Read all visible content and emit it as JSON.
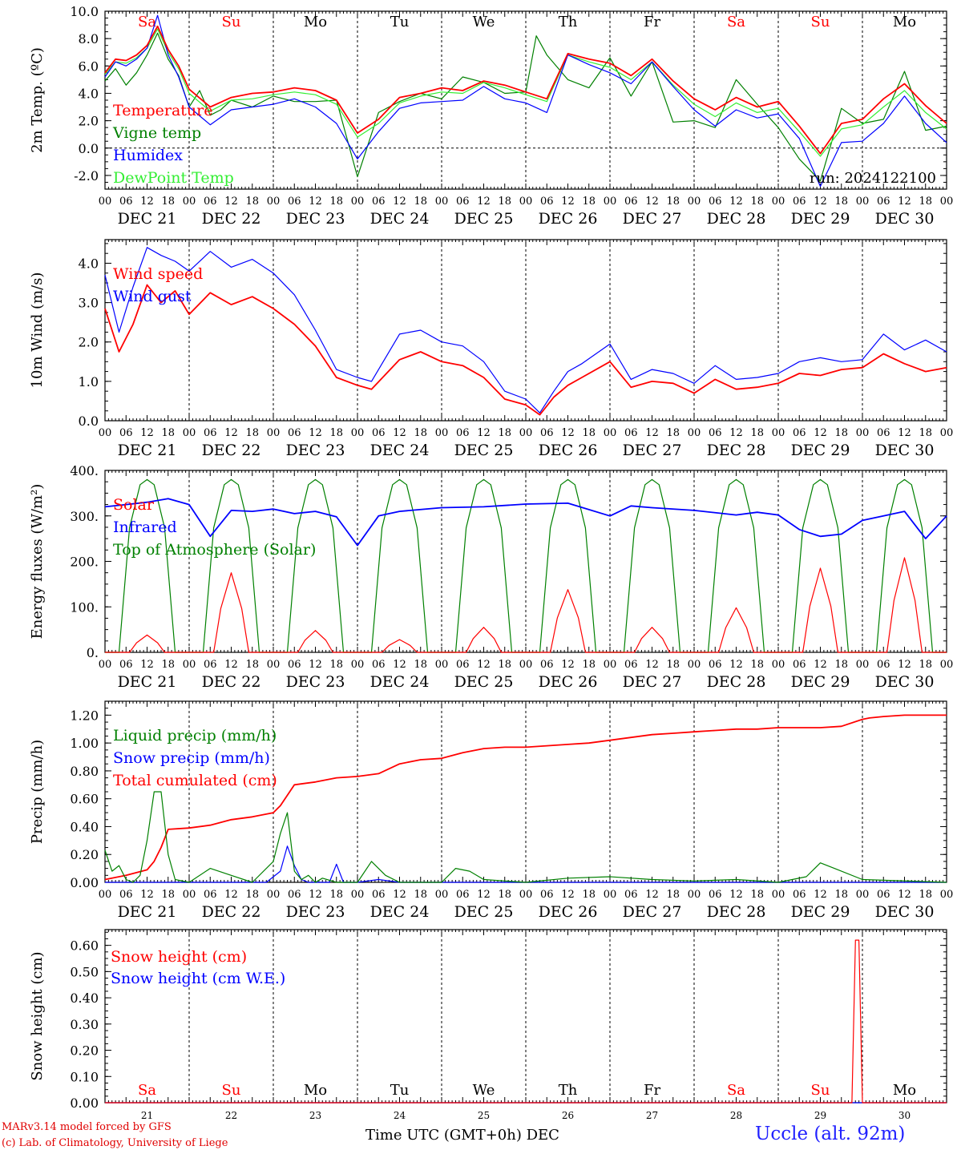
{
  "chart_data": [
    {
      "type": "line",
      "ylabel": "2m Temp. (ºC)",
      "ylim": [
        -3,
        10
      ],
      "yticks": [
        "10.0",
        "8.0",
        "6.0",
        "4.0",
        "2.0",
        "0.0",
        "-2.0"
      ],
      "annotation": "run: 2024122100",
      "series": [
        {
          "name": "Temperature",
          "color": "#ff0000",
          "x": [
            0,
            3,
            6,
            9,
            12,
            15,
            18,
            21,
            24,
            30,
            36,
            42,
            48,
            54,
            60,
            66,
            72,
            78,
            84,
            90,
            96,
            102,
            108,
            114,
            120,
            126,
            132,
            138,
            144,
            150,
            156,
            162,
            168,
            174,
            180,
            186,
            192,
            198,
            204,
            210,
            216,
            222,
            228,
            234,
            240
          ],
          "y": [
            5.5,
            6.5,
            6.4,
            6.8,
            7.5,
            8.9,
            7.2,
            6.0,
            4.3,
            3.0,
            3.7,
            4.0,
            4.1,
            4.4,
            4.2,
            3.5,
            1.1,
            2.1,
            3.7,
            4.0,
            4.4,
            4.2,
            4.9,
            4.6,
            4.1,
            3.6,
            6.9,
            6.5,
            6.2,
            5.3,
            6.5,
            4.9,
            3.6,
            2.8,
            3.7,
            3.0,
            3.4,
            1.6,
            -0.4,
            1.8,
            2.1,
            3.6,
            4.7,
            3.1,
            1.8
          ]
        },
        {
          "name": "Vigne temp",
          "color": "#008000",
          "x": [
            0,
            3,
            6,
            9,
            12,
            15,
            18,
            21,
            24,
            27,
            30,
            33,
            36,
            42,
            48,
            54,
            60,
            66,
            72,
            78,
            84,
            90,
            96,
            102,
            108,
            114,
            120,
            123,
            126,
            132,
            138,
            144,
            150,
            156,
            162,
            168,
            174,
            180,
            186,
            192,
            198,
            204,
            210,
            216,
            222,
            228,
            234,
            240
          ],
          "y": [
            4.9,
            5.8,
            4.6,
            5.5,
            6.8,
            8.4,
            6.5,
            5.3,
            3.0,
            4.2,
            2.4,
            2.8,
            3.5,
            3.0,
            3.8,
            3.4,
            3.4,
            3.5,
            -2.1,
            2.6,
            3.4,
            4.0,
            3.6,
            5.2,
            4.8,
            4.0,
            4.1,
            8.2,
            6.8,
            5.0,
            4.4,
            6.6,
            3.8,
            6.3,
            1.9,
            2.0,
            1.5,
            5.0,
            3.2,
            1.5,
            -0.8,
            -2.4,
            2.9,
            1.8,
            2.1,
            5.6,
            1.3,
            1.6
          ]
        },
        {
          "name": "Humidex",
          "color": "#0000ff",
          "x": [
            0,
            3,
            6,
            9,
            12,
            15,
            18,
            21,
            24,
            30,
            36,
            42,
            48,
            54,
            60,
            66,
            72,
            78,
            84,
            90,
            96,
            102,
            108,
            114,
            120,
            126,
            132,
            138,
            144,
            150,
            156,
            162,
            168,
            174,
            180,
            186,
            192,
            198,
            204,
            210,
            216,
            222,
            228,
            234,
            240
          ],
          "y": [
            5.2,
            6.3,
            6.0,
            6.5,
            7.3,
            9.7,
            6.8,
            5.2,
            3.0,
            1.7,
            2.8,
            3.0,
            3.2,
            3.6,
            3.0,
            1.8,
            -0.8,
            1.2,
            2.9,
            3.3,
            3.4,
            3.5,
            4.5,
            3.6,
            3.3,
            2.6,
            6.8,
            6.1,
            5.5,
            4.7,
            6.3,
            4.5,
            2.8,
            1.6,
            2.8,
            2.2,
            2.5,
            0.7,
            -2.8,
            0.4,
            0.5,
            1.8,
            3.8,
            1.8,
            0.4
          ]
        },
        {
          "name": "DewPoint Temp",
          "color": "#33ee33",
          "x": [
            0,
            3,
            6,
            9,
            12,
            15,
            18,
            21,
            24,
            30,
            36,
            42,
            48,
            54,
            60,
            66,
            72,
            78,
            84,
            90,
            96,
            102,
            108,
            114,
            120,
            126,
            132,
            138,
            144,
            150,
            156,
            162,
            168,
            174,
            180,
            186,
            192,
            198,
            204,
            210,
            216,
            222,
            228,
            234,
            240
          ],
          "y": [
            5.4,
            6.3,
            6.2,
            6.6,
            7.3,
            8.7,
            7.0,
            5.8,
            4.0,
            2.7,
            3.5,
            3.6,
            3.9,
            4.1,
            3.9,
            3.2,
            0.8,
            1.8,
            3.3,
            3.8,
            4.1,
            4.0,
            4.8,
            4.4,
            3.9,
            3.4,
            6.8,
            6.3,
            5.9,
            5.0,
            6.3,
            4.6,
            3.2,
            2.3,
            3.3,
            2.6,
            2.9,
            1.2,
            -0.6,
            1.4,
            1.7,
            3.0,
            4.2,
            2.6,
            1.4
          ]
        }
      ]
    },
    {
      "type": "line",
      "ylabel": "10m Wind (m/s)",
      "ylim": [
        0,
        4.6
      ],
      "yticks": [
        "4.0",
        "3.0",
        "2.0",
        "1.0",
        "0.0"
      ],
      "series": [
        {
          "name": "Wind speed",
          "color": "#ff0000",
          "x": [
            0,
            4,
            8,
            12,
            16,
            20,
            24,
            30,
            36,
            42,
            48,
            54,
            60,
            66,
            72,
            76,
            84,
            90,
            96,
            102,
            108,
            114,
            120,
            124,
            128,
            132,
            136,
            144,
            150,
            156,
            162,
            168,
            174,
            180,
            186,
            192,
            198,
            204,
            210,
            216,
            222,
            228,
            234,
            240
          ],
          "y": [
            2.85,
            1.75,
            2.45,
            3.45,
            3.0,
            3.3,
            2.7,
            3.25,
            2.95,
            3.15,
            2.85,
            2.45,
            1.9,
            1.1,
            0.9,
            0.8,
            1.55,
            1.75,
            1.5,
            1.4,
            1.1,
            0.55,
            0.4,
            0.15,
            0.6,
            0.9,
            1.1,
            1.5,
            0.85,
            1.0,
            0.95,
            0.7,
            1.05,
            0.8,
            0.85,
            0.95,
            1.2,
            1.15,
            1.3,
            1.35,
            1.7,
            1.45,
            1.25,
            1.35
          ]
        },
        {
          "name": "Wind gust",
          "color": "#0000ff",
          "x": [
            0,
            4,
            8,
            12,
            16,
            20,
            24,
            30,
            36,
            42,
            48,
            54,
            60,
            66,
            72,
            76,
            84,
            90,
            96,
            102,
            108,
            114,
            120,
            124,
            128,
            132,
            136,
            144,
            150,
            156,
            162,
            168,
            174,
            180,
            186,
            192,
            198,
            204,
            210,
            216,
            222,
            228,
            234,
            240
          ],
          "y": [
            3.7,
            2.25,
            3.4,
            4.4,
            4.2,
            4.05,
            3.8,
            4.3,
            3.9,
            4.1,
            3.75,
            3.2,
            2.3,
            1.3,
            1.1,
            1.0,
            2.2,
            2.3,
            2.0,
            1.9,
            1.5,
            0.75,
            0.55,
            0.2,
            0.75,
            1.25,
            1.45,
            1.95,
            1.05,
            1.3,
            1.2,
            0.95,
            1.4,
            1.05,
            1.1,
            1.2,
            1.5,
            1.6,
            1.5,
            1.55,
            2.2,
            1.8,
            2.05,
            1.75
          ]
        }
      ]
    },
    {
      "type": "line",
      "ylabel": "Energy fluxes (W/m²)",
      "ylim": [
        0,
        400
      ],
      "yticks": [
        "400.",
        "300.",
        "200.",
        "100.",
        "0."
      ],
      "series": [
        {
          "name": "Solar",
          "color": "#ff0000",
          "peaks": [
            38,
            175,
            48,
            28,
            55,
            138,
            55,
            98,
            185,
            208
          ]
        },
        {
          "name": "Infrared",
          "color": "#0000ff",
          "x": [
            0,
            6,
            12,
            18,
            24,
            30,
            36,
            42,
            48,
            54,
            60,
            66,
            72,
            78,
            84,
            96,
            108,
            120,
            132,
            144,
            150,
            156,
            168,
            180,
            186,
            192,
            198,
            204,
            210,
            216,
            222,
            228,
            234,
            240
          ],
          "y": [
            320,
            325,
            330,
            338,
            325,
            255,
            312,
            310,
            315,
            305,
            310,
            298,
            235,
            300,
            310,
            318,
            320,
            326,
            328,
            300,
            322,
            318,
            312,
            302,
            308,
            302,
            270,
            255,
            260,
            290,
            300,
            310,
            250,
            300
          ]
        },
        {
          "name": "Top of Atmosphere (Solar)",
          "color": "#008000",
          "peak": 380
        }
      ]
    },
    {
      "type": "line",
      "ylabel": "Precip (mm/h)",
      "ylim": [
        0,
        1.3
      ],
      "yticks": [
        "1.20",
        "1.00",
        "0.80",
        "0.60",
        "0.40",
        "0.20",
        "0.00"
      ],
      "series": [
        {
          "name": "Liquid precip (mm/h)",
          "color": "#008000",
          "x": [
            0,
            2,
            4,
            6,
            8,
            10,
            12,
            14,
            16,
            18,
            20,
            24,
            30,
            36,
            42,
            48,
            50,
            52,
            54,
            56,
            58,
            60,
            62,
            66,
            72,
            76,
            80,
            84,
            88,
            96,
            100,
            104,
            108,
            120,
            132,
            144,
            156,
            168,
            180,
            192,
            200,
            204,
            208,
            216,
            240
          ],
          "y": [
            0.23,
            0.08,
            0.12,
            0.02,
            0.0,
            0.05,
            0.3,
            0.65,
            0.65,
            0.2,
            0.02,
            0.0,
            0.1,
            0.05,
            0.0,
            0.15,
            0.35,
            0.5,
            0.08,
            0.02,
            0.05,
            0.0,
            0.03,
            0.0,
            0.0,
            0.15,
            0.05,
            0.0,
            0.0,
            0.0,
            0.1,
            0.08,
            0.02,
            0.0,
            0.03,
            0.04,
            0.02,
            0.01,
            0.02,
            0.0,
            0.04,
            0.14,
            0.1,
            0.02,
            0.0
          ]
        },
        {
          "name": "Snow precip (mm/h)",
          "color": "#0000ff",
          "x": [
            0,
            46,
            50,
            52,
            54,
            56,
            58,
            60,
            64,
            66,
            68,
            72,
            78,
            84,
            120,
            240
          ],
          "y": [
            0.0,
            0.0,
            0.08,
            0.26,
            0.12,
            0.02,
            0.0,
            0.0,
            0.0,
            0.13,
            0.0,
            0.0,
            0.02,
            0.0,
            0.0,
            0.0
          ]
        },
        {
          "name": "Total cumulated (cm)",
          "color": "#ff0000",
          "x": [
            0,
            6,
            12,
            14,
            16,
            18,
            24,
            30,
            36,
            42,
            48,
            50,
            54,
            60,
            66,
            72,
            78,
            84,
            90,
            96,
            102,
            108,
            114,
            120,
            126,
            132,
            138,
            144,
            150,
            156,
            162,
            168,
            174,
            180,
            186,
            192,
            198,
            204,
            210,
            216,
            218,
            222,
            228,
            240
          ],
          "y": [
            0.02,
            0.05,
            0.09,
            0.15,
            0.25,
            0.38,
            0.39,
            0.41,
            0.45,
            0.47,
            0.5,
            0.55,
            0.7,
            0.72,
            0.75,
            0.76,
            0.78,
            0.85,
            0.88,
            0.89,
            0.93,
            0.96,
            0.97,
            0.97,
            0.98,
            0.99,
            1.0,
            1.02,
            1.04,
            1.06,
            1.07,
            1.08,
            1.09,
            1.1,
            1.1,
            1.11,
            1.11,
            1.11,
            1.12,
            1.17,
            1.18,
            1.19,
            1.2,
            1.2
          ]
        }
      ]
    },
    {
      "type": "line",
      "ylabel": "Snow height (cm)",
      "ylim": [
        0,
        0.66
      ],
      "yticks": [
        "0.60",
        "0.50",
        "0.40",
        "0.30",
        "0.20",
        "0.10",
        "0.00"
      ],
      "series": [
        {
          "name": "Snow height (cm)",
          "color": "#ff0000",
          "x": [
            0,
            213,
            214,
            215,
            216,
            240
          ],
          "y": [
            0,
            0,
            0.62,
            0.62,
            0,
            0
          ]
        },
        {
          "name": "Snow height (cm W.E.)",
          "color": "#0000ff",
          "x": [
            0,
            240
          ],
          "y": [
            0,
            0
          ]
        }
      ]
    }
  ],
  "days": [
    {
      "weekday": "Sa",
      "weekend": true,
      "date": "DEC 21",
      "num": "21"
    },
    {
      "weekday": "Su",
      "weekend": true,
      "date": "DEC 22",
      "num": "22"
    },
    {
      "weekday": "Mo",
      "weekend": false,
      "date": "DEC 23",
      "num": "23"
    },
    {
      "weekday": "Tu",
      "weekend": false,
      "date": "DEC 24",
      "num": "24"
    },
    {
      "weekday": "We",
      "weekend": false,
      "date": "DEC 25",
      "num": "25"
    },
    {
      "weekday": "Th",
      "weekend": false,
      "date": "DEC 26",
      "num": "26"
    },
    {
      "weekday": "Fr",
      "weekend": false,
      "date": "DEC 27",
      "num": "27"
    },
    {
      "weekday": "Sa",
      "weekend": true,
      "date": "DEC 28",
      "num": "28"
    },
    {
      "weekday": "Su",
      "weekend": true,
      "date": "DEC 29",
      "num": "29"
    },
    {
      "weekday": "Mo",
      "weekend": false,
      "date": "DEC 30",
      "num": "30"
    }
  ],
  "hour_labels": [
    "00",
    "06",
    "12",
    "18"
  ],
  "hour_labels_end": "00",
  "footer": {
    "credit_line1": "MARv3.14 model forced by GFS",
    "credit_line2": "(c) Lab. of Climatology, University of Liege",
    "xaxis_title": "Time UTC (GMT+0h) DEC",
    "location": "Uccle (alt. 92m)"
  },
  "colors": {
    "weekend": "#ff0000",
    "weekday": "#000000",
    "axis": "#000000",
    "location": "#2020ff"
  }
}
